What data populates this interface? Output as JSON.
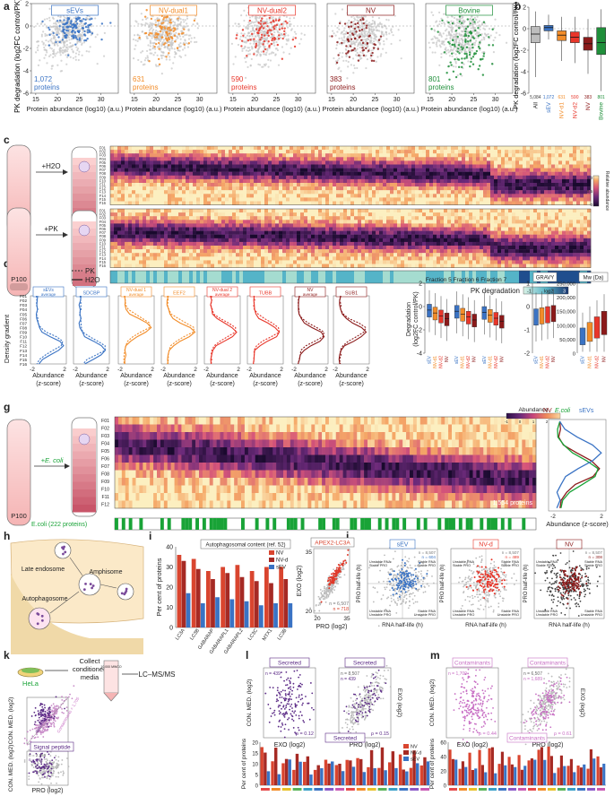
{
  "panel_labels": [
    "a",
    "b",
    "c",
    "d",
    "e",
    "f",
    "g",
    "h",
    "i",
    "j",
    "k",
    "l",
    "m"
  ],
  "colors": {
    "sev": "#3a73c4",
    "nv_dual1": "#f28c28",
    "nv_dual2": "#e8362a",
    "nv": "#8b1a1a",
    "bovine": "#1f8f3a",
    "grey": "#bdbdbd",
    "secreted": "#5b2a86",
    "contaminants": "#c86fc4",
    "green_bar": "#19a337"
  },
  "panel_a": {
    "ylabel": "PK degradation (log2FC control/PK)",
    "xlabel": "Protein abundance (log10) (a.u.)",
    "y_ticks": [
      "2",
      "0",
      "-2",
      "-4",
      "-6"
    ],
    "x_ticks": [
      "15",
      "20",
      "25",
      "30"
    ],
    "plots": [
      {
        "title": "sEVs",
        "count": "1,072",
        "unit": "proteins",
        "color": "#3a73c4"
      },
      {
        "title": "NV-dual1",
        "count": "631",
        "unit": "proteins",
        "color": "#f28c28"
      },
      {
        "title": "NV-dual2",
        "count": "590",
        "unit": "proteins",
        "color": "#e8362a"
      },
      {
        "title": "NV",
        "count": "383",
        "unit": "proteins",
        "color": "#8b1a1a"
      },
      {
        "title": "Bovine",
        "count": "801",
        "unit": "proteins",
        "color": "#1f8f3a"
      }
    ]
  },
  "panel_b": {
    "ylabel": "PK degradation (log2FC control/PK)",
    "y_ticks": [
      "2",
      "0",
      "-2",
      "-4",
      "-6"
    ],
    "categories": [
      "All",
      "sEV",
      "NV-d1",
      "NV-d2",
      "NV",
      "Bovine"
    ],
    "counts": [
      "5,084",
      "1,072",
      "631",
      "590",
      "383",
      "801"
    ]
  },
  "panel_c": {
    "treatments": [
      "+H2O",
      "+PK"
    ],
    "tube_label": "P100",
    "fractions": [
      "F01",
      "F02",
      "F03",
      "F04",
      "F05",
      "F06",
      "F07",
      "F08",
      "F09",
      "F10",
      "F11",
      "F12",
      "F13",
      "F14",
      "F15",
      "F16"
    ],
    "colorbar_label": "Relative abundance",
    "colorbar_ticks": [
      "1.0",
      "0.5",
      "0"
    ],
    "bottom_label": "PK degradation",
    "bottom_scale": [
      "-1",
      "log2",
      "3"
    ]
  },
  "panel_d": {
    "legend": [
      "PK",
      "H2O"
    ],
    "ylabel": "Density gradient",
    "fractions": [
      "F01",
      "F02",
      "F03",
      "F04",
      "F05",
      "F06",
      "F07",
      "F08",
      "F09",
      "F10",
      "F11",
      "F12",
      "F13",
      "F14",
      "F15",
      "F16"
    ],
    "xlabel": "Abundance (z-score)",
    "xticks": [
      "-2",
      "2"
    ],
    "profiles": [
      {
        "title": "sEVs average",
        "color": "#3a73c4"
      },
      {
        "title": "SDCBP",
        "color": "#3a73c4"
      },
      {
        "title": "NV-dual 1 average",
        "color": "#f28c28"
      },
      {
        "title": "EEF2",
        "color": "#f28c28"
      },
      {
        "title": "NV-dual 2 average",
        "color": "#e8362a"
      },
      {
        "title": "TUBB",
        "color": "#e8362a"
      },
      {
        "title": "NV average",
        "color": "#8b1a1a"
      },
      {
        "title": "SUB1",
        "color": "#8b1a1a"
      }
    ]
  },
  "panel_e": {
    "ylabel": "Degradation (log2FC control/PK)",
    "groups": [
      "Fraction 5",
      "Fraction 6",
      "Fraction 7"
    ],
    "y_ticks": [
      "2",
      "0",
      "-2",
      "-4"
    ],
    "cats": [
      "sEV",
      "NV-d1",
      "NV-d2",
      "NV"
    ]
  },
  "panel_f": {
    "titles": [
      "GRAVY",
      "Mw (Da)"
    ],
    "y1_ticks": [
      "1",
      "0",
      "-1",
      "-2"
    ],
    "y2_ticks": [
      "250,000",
      "200,000",
      "150,000",
      "100,000",
      "50,000",
      "0"
    ],
    "cats": [
      "sEV",
      "NV-d1",
      "NV-d2",
      "NV"
    ]
  },
  "panel_g": {
    "treatment": "+E. coli",
    "tube_label": "P100",
    "fractions": [
      "F01",
      "F02",
      "F03",
      "F04",
      "F05",
      "F06",
      "F07",
      "F08",
      "F09",
      "F10",
      "F11",
      "F12"
    ],
    "heat_note": "1,554 proteins",
    "ecoli_label": "E.coli (222 proteins)",
    "colorbar_label": "Abundance",
    "colorbar_ticks": [
      "-1",
      "0",
      "1",
      "2",
      "3"
    ],
    "legend": [
      "NV",
      "E.coli",
      "sEVs"
    ],
    "xlabel": "Abundance (z-score)",
    "xticks": [
      "-2",
      "2"
    ]
  },
  "panel_h": {
    "labels": [
      "Late endosome",
      "Amphisome",
      "Autophagosome"
    ]
  },
  "panel_i": {
    "bar_title": "Autophagosomal content (ref. 52)",
    "ylabel": "Per cent of proteins",
    "y_ticks": [
      "40",
      "30",
      "20",
      "10",
      "0"
    ],
    "categories": [
      "LC3A",
      "LC3B",
      "GABARAP",
      "GABARAPL1",
      "GABARAPL2",
      "LC3C",
      "MTX1",
      "LC3B"
    ],
    "legend": [
      "NV",
      "NV-d",
      "sEV"
    ],
    "series": [
      {
        "name": "NV",
        "values": [
          36,
          34,
          28,
          30,
          31,
          28,
          30,
          30
        ]
      },
      {
        "name": "NV-d",
        "values": [
          33,
          29,
          24,
          27,
          25,
          23,
          22,
          24
        ]
      },
      {
        "name": "sEV",
        "values": [
          17,
          12,
          15,
          14,
          13,
          11,
          12,
          12
        ]
      }
    ],
    "scatter_title": "APEX2-LC3A",
    "scatter_ylabel": "EXO (log2)",
    "scatter_xlabel": "PRO (log2)",
    "scatter_n1": "n = 6,507",
    "scatter_n2": "n = 718",
    "scatter_xticks": [
      "20",
      "35"
    ],
    "scatter_yticks": [
      "35",
      "20"
    ]
  },
  "panel_j": {
    "ylabel": "PRO half-life (h)",
    "xlabel": "RNA half-life (h)",
    "plots": [
      {
        "title": "sEV",
        "n1": "n = 8,507",
        "n2": "n = 604",
        "color": "#3a73c4"
      },
      {
        "title": "NV-d",
        "n1": "n = 8,507",
        "n2": "n = 489",
        "color": "#e8362a"
      },
      {
        "title": "NV",
        "n1": "n = 8,507",
        "n2": "n = 308",
        "color": "#8b1a1a"
      }
    ],
    "quadrants": [
      "Unstable RNA Stable PRO",
      "Stable RNA Stable PRO",
      "Unstable RNA Unstable PRO",
      "Stable RNA Unstable PRO"
    ]
  },
  "panel_k": {
    "cell_label": "HeLa",
    "step1": "Collect conditioned media",
    "step2": "LC–MS/MS",
    "tube_text": "10,000 MWCO",
    "scatter_ylabel": "CON. MED. (log2)",
    "scatter_xlabel": "PRO (log2)",
    "line_labels": [
      "Secreted = 444",
      "Contaminants = 1,705"
    ],
    "sig_title": "Signal peptide",
    "sig_n1": "n = 2,156",
    "sig_n2": "n = 343"
  },
  "panel_l": {
    "title": "Secreted",
    "left_ylabel": "CON. MED. (log2)",
    "left_xlabel": "EXO (log2)",
    "left_n": "n = 439",
    "left_rho": "ρ = 0.12",
    "right_ylabel": "EXO (log2)",
    "right_xlabel": "PRO (log2)",
    "right_n1": "n = 8,507",
    "right_n2": "n = 439",
    "right_rho": "ρ = 0.15",
    "bar_ylabel": "Per cent of proteins",
    "bar_yticks": [
      "20",
      "15",
      "10",
      "5",
      "0"
    ],
    "legend": [
      "NV",
      "NV-d",
      "sEV"
    ]
  },
  "panel_m": {
    "title": "Contaminants",
    "left_ylabel": "CON. MED. (log2)",
    "left_xlabel": "EXO (log2)",
    "left_n": "n = 1,709",
    "left_rho": "ρ = 0.44",
    "right_ylabel": "EXO (log2)",
    "right_xlabel": "PRO (log2)",
    "right_n1": "n = 6,507",
    "right_n2": "n = 1,689",
    "right_rho": "ρ = 0.61",
    "bar_ylabel": "Per cent of proteins",
    "bar_yticks": [
      "60",
      "40",
      "20",
      "0"
    ]
  }
}
